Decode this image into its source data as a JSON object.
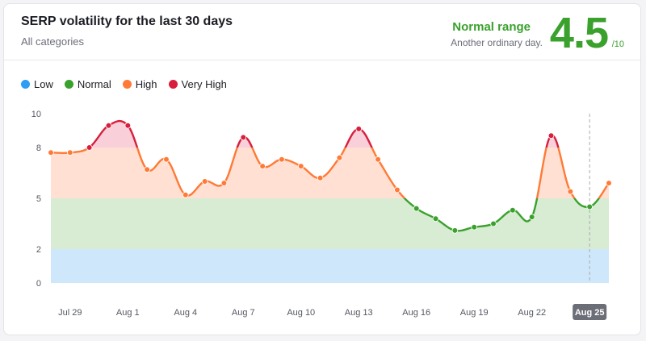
{
  "header": {
    "title": "SERP volatility for the last 30 days",
    "subtitle": "All categories",
    "range_label": "Normal range",
    "range_desc": "Another ordinary day.",
    "score": "4.5",
    "score_den": "/10"
  },
  "legend": [
    {
      "label": "Low",
      "color": "#2d9cf4"
    },
    {
      "label": "Normal",
      "color": "#3aa12c"
    },
    {
      "label": "High",
      "color": "#ff7a36"
    },
    {
      "label": "Very High",
      "color": "#d81e3c"
    }
  ],
  "chart_data": {
    "type": "line",
    "title": "",
    "xlabel": "",
    "ylabel": "",
    "ylim": [
      0,
      10
    ],
    "y_ticks": [
      0,
      2,
      5,
      8,
      10
    ],
    "x_tick_labels": [
      "Jul 29",
      "Aug 1",
      "Aug 4",
      "Aug 7",
      "Aug 10",
      "Aug 13",
      "Aug 16",
      "Aug 19",
      "Aug 22",
      "Aug 25"
    ],
    "x_tick_index": [
      1,
      4,
      7,
      10,
      13,
      16,
      19,
      22,
      25,
      28
    ],
    "highlighted_x_label": "Aug 25",
    "bands": [
      {
        "name": "Low",
        "from": 0,
        "to": 2,
        "color": "#cfe7fb"
      },
      {
        "name": "Normal",
        "from": 2,
        "to": 5,
        "color": "#d7ecd2"
      },
      {
        "name": "High",
        "from": 5,
        "to": 8,
        "color": "#ffe0d3"
      },
      {
        "name": "Very High",
        "from": 8,
        "to": 10,
        "color": "#f9cfd9"
      }
    ],
    "series": [
      {
        "values": [
          7.7,
          7.7,
          8.0,
          9.3,
          9.3,
          6.7,
          7.3,
          5.2,
          6.0,
          5.9,
          8.6,
          6.9,
          7.3,
          6.9,
          6.2,
          7.4,
          9.1,
          7.3,
          5.5,
          4.4,
          3.8,
          3.1,
          3.3,
          3.5,
          4.3,
          3.9,
          8.7,
          5.4,
          4.5,
          5.9
        ]
      }
    ]
  }
}
